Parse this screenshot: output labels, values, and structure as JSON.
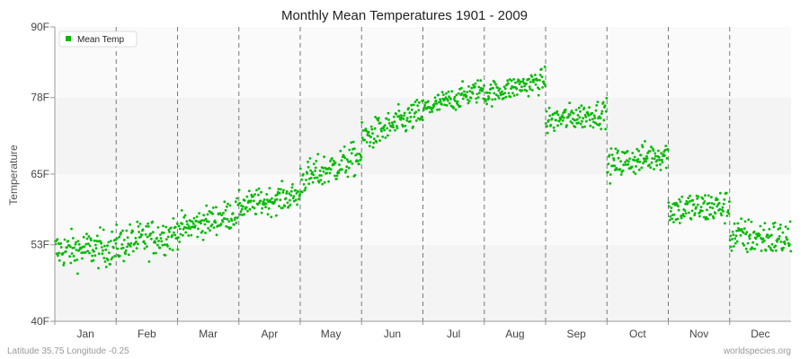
{
  "chart_data": {
    "type": "scatter",
    "title": "Monthly Mean Temperatures 1901 - 2009",
    "ylabel": "Temperature",
    "ylim": [
      40,
      90
    ],
    "yticks": [
      {
        "value": 40,
        "label": "40F"
      },
      {
        "value": 53,
        "label": "53F"
      },
      {
        "value": 65,
        "label": "65F"
      },
      {
        "value": 78,
        "label": "78F"
      },
      {
        "value": 90,
        "label": "90F"
      }
    ],
    "categories": [
      "Jan",
      "Feb",
      "Mar",
      "Apr",
      "May",
      "Jun",
      "Jul",
      "Aug",
      "Sep",
      "Oct",
      "Nov",
      "Dec"
    ],
    "series": [
      {
        "name": "Mean Temp",
        "color": "#00bb00",
        "points_per_month": 109,
        "month_trend": [
          {
            "start": 52.0,
            "end": 52.5,
            "spread": 2.2
          },
          {
            "start": 53.0,
            "end": 55.0,
            "spread": 2.2
          },
          {
            "start": 55.5,
            "end": 58.5,
            "spread": 1.8
          },
          {
            "start": 59.5,
            "end": 61.5,
            "spread": 1.6
          },
          {
            "start": 64.0,
            "end": 68.0,
            "spread": 2.0
          },
          {
            "start": 71.0,
            "end": 75.5,
            "spread": 1.8
          },
          {
            "start": 76.0,
            "end": 79.5,
            "spread": 1.4
          },
          {
            "start": 78.5,
            "end": 81.0,
            "spread": 1.4
          },
          {
            "start": 74.0,
            "end": 75.5,
            "spread": 1.6
          },
          {
            "start": 66.5,
            "end": 68.5,
            "spread": 1.8
          },
          {
            "start": 59.0,
            "end": 59.5,
            "spread": 2.0
          },
          {
            "start": 54.5,
            "end": 54.0,
            "spread": 2.2
          }
        ]
      }
    ],
    "grid": "dashed vertical month separators, alternating horizontal bands",
    "legend": "top-left"
  },
  "footer": {
    "left": "Latitude 35.75 Longitude -0.25",
    "right": "worldspecies.org"
  }
}
